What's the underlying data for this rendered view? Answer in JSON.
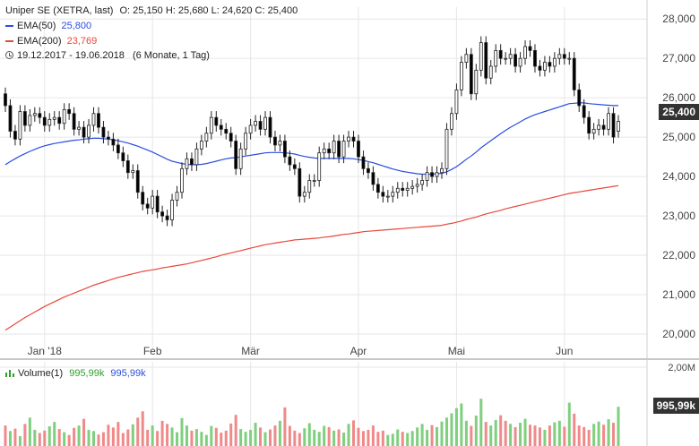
{
  "header": {
    "instrument": "Uniper SE (XETRA, last)",
    "ohlc": "O: 25,150  H: 25,680  L: 24,620  C: 25,400",
    "ema50_label": "EMA(50)",
    "ema50_value": "25,800",
    "ema200_label": "EMA(200)",
    "ema200_value": "23,769",
    "date_range": "19.12.2017 - 19.06.2018",
    "period": "(6 Monate, 1 Tag)",
    "volume_label": "Volume(1)",
    "volume_value1": "995,99k",
    "volume_value2": "995,99k"
  },
  "price_tag": "25,400",
  "volume_tag": "995,99k",
  "colors": {
    "up": "#3c3c3c",
    "down": "#000000",
    "ema50": "#2b4de0",
    "ema200": "#e8483a",
    "vol_up": "#7fcf7f",
    "vol_down": "#f08a8a",
    "grid": "#e6e6e6",
    "tag": "#333333",
    "vol_label": "#2e9f2e"
  },
  "chart_data": [
    {
      "type": "line",
      "ylim": [
        19500,
        28300
      ],
      "yticks": [
        20000,
        21000,
        22000,
        23000,
        24000,
        25000,
        26000,
        27000,
        28000
      ],
      "ytick_labels": [
        "20,000",
        "21,000",
        "22,000",
        "23,000",
        "24,000",
        "25,000",
        "26,000",
        "27,000",
        "28,000"
      ],
      "xtick_labels": [
        {
          "label": "Jan '18",
          "index": 8
        },
        {
          "label": "Feb",
          "index": 30
        },
        {
          "label": "Mär",
          "index": 50
        },
        {
          "label": "Apr",
          "index": 72
        },
        {
          "label": "Mai",
          "index": 92
        },
        {
          "label": "Jun",
          "index": 114
        }
      ],
      "candles_close": [
        25800,
        25150,
        24950,
        25650,
        25300,
        25550,
        25600,
        25500,
        25300,
        25450,
        25500,
        25350,
        25700,
        25600,
        25200,
        25250,
        25000,
        25300,
        25600,
        25250,
        25000,
        24950,
        24800,
        24600,
        24400,
        24100,
        24150,
        23600,
        23300,
        23200,
        23500,
        23100,
        23000,
        22900,
        23400,
        23600,
        24200,
        24450,
        24300,
        24700,
        24900,
        25100,
        25500,
        25300,
        25200,
        25100,
        24900,
        24200,
        24700,
        25100,
        25300,
        25400,
        25200,
        25500,
        25000,
        24800,
        24900,
        24500,
        24300,
        24200,
        23500,
        23600,
        23900,
        23900,
        24600,
        24700,
        24600,
        24900,
        24500,
        24900,
        25000,
        24900,
        24500,
        24200,
        24100,
        23800,
        23600,
        23500,
        23500,
        23600,
        23700,
        23650,
        23700,
        23750,
        23800,
        23900,
        24100,
        24000,
        24100,
        24200,
        25200,
        25600,
        26200,
        26900,
        27100,
        26100,
        26700,
        27400,
        26500,
        26800,
        27200,
        27000,
        27000,
        27100,
        26800,
        27000,
        27300,
        27200,
        26800,
        26700,
        26900,
        26800,
        27000,
        27100,
        27000,
        27000,
        26200,
        25800,
        25500,
        25100,
        25200,
        25300,
        25200,
        25600,
        25000,
        25400
      ],
      "candles_open": [
        26100,
        25800,
        25150,
        24950,
        25650,
        25300,
        25550,
        25600,
        25500,
        25300,
        25450,
        25500,
        25350,
        25700,
        25600,
        25200,
        25250,
        25000,
        25300,
        25600,
        25250,
        25000,
        24950,
        24800,
        24600,
        24400,
        24100,
        24150,
        23600,
        23300,
        23200,
        23500,
        23100,
        23000,
        22900,
        23400,
        23600,
        24200,
        24450,
        24300,
        24700,
        24900,
        25100,
        25500,
        25300,
        25200,
        25100,
        24900,
        24200,
        24700,
        25100,
        25300,
        25400,
        25200,
        25500,
        25000,
        24800,
        24900,
        24500,
        24300,
        24200,
        23500,
        23600,
        23900,
        23900,
        24600,
        24700,
        24600,
        24900,
        24500,
        24900,
        25000,
        24900,
        24500,
        24200,
        24100,
        23800,
        23600,
        23500,
        23500,
        23600,
        23700,
        23650,
        23700,
        23750,
        23800,
        23900,
        24100,
        24000,
        24100,
        24200,
        25200,
        25600,
        26200,
        26900,
        27100,
        26100,
        26700,
        27400,
        26500,
        26800,
        27200,
        27000,
        27000,
        27100,
        26800,
        27000,
        27300,
        27200,
        26800,
        26700,
        26900,
        26800,
        27000,
        27100,
        27000,
        27000,
        26200,
        25800,
        25500,
        25100,
        25200,
        25300,
        25200,
        25600,
        25150
      ],
      "series": [
        {
          "name": "EMA(50)",
          "values": [
            24300,
            24380,
            24450,
            24520,
            24580,
            24640,
            24690,
            24740,
            24780,
            24810,
            24840,
            24860,
            24880,
            24900,
            24920,
            24930,
            24950,
            24960,
            24970,
            24970,
            24960,
            24950,
            24930,
            24910,
            24880,
            24850,
            24810,
            24770,
            24720,
            24670,
            24620,
            24560,
            24500,
            24440,
            24390,
            24360,
            24330,
            24310,
            24300,
            24300,
            24310,
            24330,
            24360,
            24390,
            24420,
            24450,
            24470,
            24480,
            24500,
            24520,
            24540,
            24560,
            24580,
            24600,
            24610,
            24610,
            24610,
            24600,
            24590,
            24570,
            24540,
            24510,
            24490,
            24470,
            24460,
            24460,
            24460,
            24460,
            24460,
            24460,
            24460,
            24450,
            24430,
            24410,
            24380,
            24350,
            24310,
            24270,
            24230,
            24190,
            24160,
            24130,
            24110,
            24090,
            24070,
            24060,
            24060,
            24060,
            24070,
            24080,
            24120,
            24180,
            24250,
            24340,
            24440,
            24520,
            24620,
            24730,
            24820,
            24910,
            25000,
            25090,
            25170,
            25250,
            25320,
            25390,
            25460,
            25520,
            25570,
            25610,
            25650,
            25690,
            25730,
            25770,
            25810,
            25850,
            25860,
            25870,
            25870,
            25850,
            25840,
            25830,
            25820,
            25810,
            25800,
            25800
          ]
        },
        {
          "name": "EMA(200)",
          "values": [
            20100,
            20180,
            20260,
            20340,
            20420,
            20490,
            20560,
            20630,
            20700,
            20760,
            20820,
            20880,
            20940,
            20990,
            21040,
            21090,
            21140,
            21190,
            21240,
            21280,
            21320,
            21360,
            21400,
            21440,
            21470,
            21500,
            21530,
            21560,
            21590,
            21610,
            21630,
            21650,
            21680,
            21700,
            21720,
            21740,
            21760,
            21780,
            21810,
            21840,
            21870,
            21900,
            21930,
            21960,
            22000,
            22030,
            22060,
            22090,
            22120,
            22150,
            22180,
            22210,
            22240,
            22270,
            22290,
            22310,
            22330,
            22350,
            22370,
            22390,
            22400,
            22410,
            22420,
            22430,
            22440,
            22460,
            22470,
            22490,
            22510,
            22530,
            22540,
            22560,
            22580,
            22600,
            22610,
            22620,
            22630,
            22640,
            22650,
            22660,
            22670,
            22680,
            22690,
            22700,
            22710,
            22720,
            22730,
            22740,
            22750,
            22760,
            22790,
            22810,
            22840,
            22870,
            22910,
            22940,
            22970,
            23010,
            23050,
            23080,
            23110,
            23140,
            23180,
            23210,
            23240,
            23270,
            23300,
            23330,
            23360,
            23390,
            23420,
            23450,
            23480,
            23510,
            23540,
            23570,
            23590,
            23610,
            23630,
            23650,
            23670,
            23690,
            23710,
            23730,
            23750,
            23769
          ]
        }
      ]
    },
    {
      "type": "bar",
      "ylim": [
        0,
        2000000
      ],
      "ytick_labels": [
        "2,00M"
      ],
      "values": [
        520,
        380,
        440,
        250,
        560,
        720,
        410,
        330,
        390,
        500,
        610,
        430,
        350,
        280,
        460,
        520,
        690,
        410,
        380,
        290,
        350,
        540,
        470,
        610,
        330,
        420,
        550,
        720,
        880,
        410,
        520,
        380,
        640,
        560,
        470,
        350,
        710,
        520,
        390,
        430,
        360,
        280,
        510,
        460,
        340,
        390,
        570,
        790,
        430,
        360,
        410,
        590,
        470,
        350,
        420,
        520,
        640,
        980,
        510,
        390,
        330,
        450,
        580,
        410,
        360,
        510,
        480,
        390,
        420,
        340,
        560,
        650,
        460,
        380,
        410,
        520,
        360,
        390,
        280,
        310,
        420,
        360,
        330,
        380,
        470,
        560,
        410,
        530,
        480,
        620,
        720,
        830,
        960,
        1080,
        640,
        510,
        770,
        1200,
        610,
        520,
        660,
        780,
        640,
        560,
        480,
        590,
        690,
        540,
        520,
        470,
        410,
        520,
        600,
        640,
        490,
        1100,
        820,
        520,
        480,
        410,
        560,
        620,
        540,
        680,
        590,
        995
      ],
      "up_flags": [
        0,
        1,
        0,
        1,
        0,
        1,
        1,
        0,
        0,
        1,
        1,
        0,
        1,
        0,
        0,
        1,
        0,
        1,
        1,
        0,
        0,
        0,
        0,
        0,
        0,
        0,
        1,
        0,
        0,
        0,
        1,
        0,
        0,
        0,
        1,
        1,
        1,
        1,
        0,
        1,
        1,
        1,
        1,
        0,
        0,
        0,
        0,
        0,
        1,
        1,
        1,
        1,
        0,
        1,
        0,
        0,
        1,
        0,
        0,
        0,
        0,
        1,
        1,
        1,
        1,
        1,
        0,
        1,
        0,
        1,
        1,
        0,
        0,
        0,
        0,
        0,
        0,
        0,
        1,
        1,
        1,
        0,
        1,
        1,
        1,
        1,
        1,
        0,
        1,
        1,
        1,
        1,
        1,
        1,
        1,
        0,
        1,
        1,
        0,
        1,
        1,
        0,
        0,
        1,
        0,
        1,
        1,
        0,
        0,
        0,
        1,
        0,
        1,
        1,
        0,
        1,
        0,
        0,
        0,
        0,
        1,
        1,
        0,
        1,
        0,
        1
      ]
    }
  ]
}
